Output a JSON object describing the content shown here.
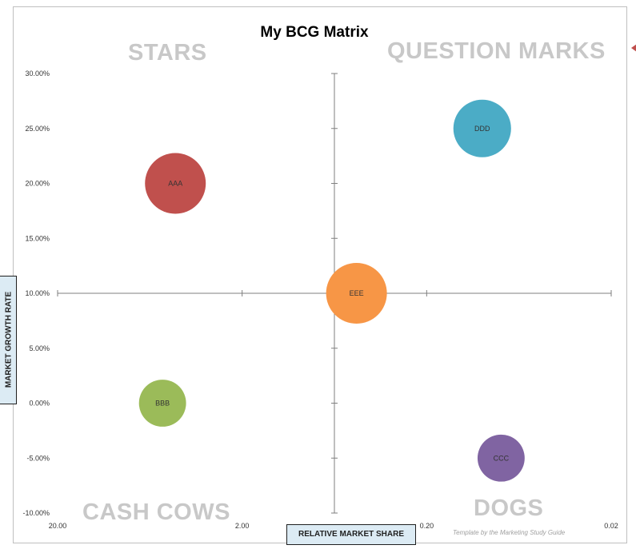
{
  "chart_data": {
    "type": "bubble",
    "title": "My BCG Matrix",
    "xlabel": "RELATIVE MARKET SHARE",
    "ylabel": "MARKET GROWTH RATE",
    "x_scale": "log",
    "x_reversed": true,
    "xlim": [
      20,
      0.02
    ],
    "x_ticks": [
      "20.00",
      "2.00",
      "0.20",
      "0.02"
    ],
    "ylim": [
      -0.1,
      0.3
    ],
    "y_ticks": [
      "30.00%",
      "25.00%",
      "20.00%",
      "15.00%",
      "10.00%",
      "5.00%",
      "0.00%",
      "-5.00%",
      "-10.00%"
    ],
    "quadrants": {
      "top_left": "STARS",
      "top_right": "QUESTION MARKS",
      "bottom_left": "CASH COWS",
      "bottom_right": "DOGS"
    },
    "points": [
      {
        "name": "AAA",
        "x": 4.6,
        "y": 0.2,
        "size": 1.0,
        "color": "#c0504d"
      },
      {
        "name": "BBB",
        "x": 5.4,
        "y": 0.0,
        "size": 0.6,
        "color": "#9bbb59"
      },
      {
        "name": "CCC",
        "x": 0.079,
        "y": -0.05,
        "size": 0.6,
        "color": "#8064a2"
      },
      {
        "name": "DDD",
        "x": 0.1,
        "y": 0.25,
        "size": 0.9,
        "color": "#4bacc6"
      },
      {
        "name": "EEE",
        "x": 0.48,
        "y": 0.1,
        "size": 1.0,
        "color": "#f79646"
      }
    ],
    "credit": "Template by the Marketing Study Guide"
  }
}
